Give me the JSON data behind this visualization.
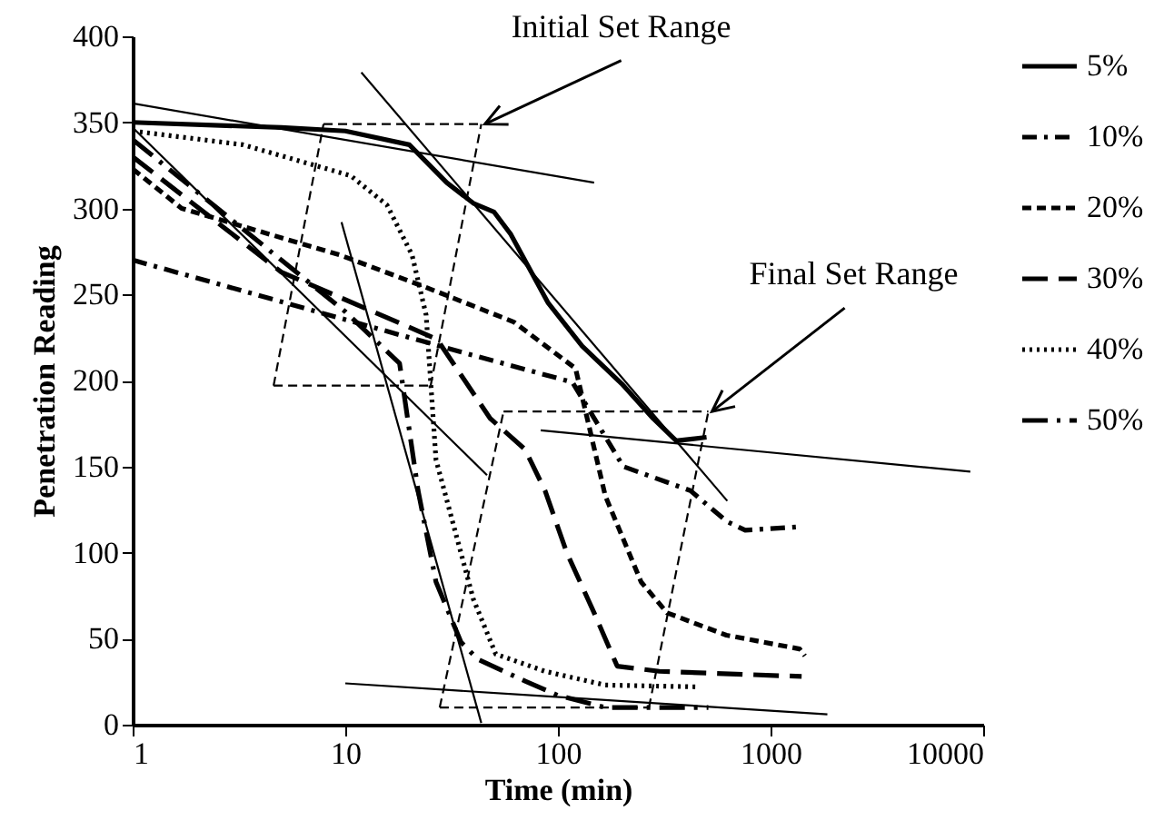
{
  "chart_data": {
    "type": "line",
    "xlabel": "Time (min)",
    "ylabel": "Penetration Reading",
    "log": "x",
    "xlim": [
      1,
      10000
    ],
    "xticks": [
      1,
      10,
      100,
      1000,
      10000
    ],
    "ylim": [
      0,
      400
    ],
    "yticks": [
      0,
      50,
      100,
      150,
      200,
      250,
      300,
      350,
      400
    ],
    "grid": false,
    "legend": "right",
    "marker": "none",
    "annotations": [
      {
        "text": "Initial Set Range",
        "x": 43.6,
        "y": 349
      },
      {
        "text": "Final Set Range",
        "x": 510,
        "y": 182
      }
    ],
    "series": [
      {
        "name": "5%",
        "color": "#000000",
        "line_style": "solid",
        "x": [
          1,
          5,
          10,
          20,
          30,
          40,
          50,
          60,
          90,
          130,
          200,
          280,
          360,
          500
        ],
        "values": [
          350,
          347,
          345,
          337,
          315,
          303,
          298,
          285,
          245,
          220,
          198,
          178,
          165,
          167
        ]
      },
      {
        "name": "10%",
        "color": "#000000",
        "line_style": "dashdot",
        "x": [
          1,
          34,
          117,
          203,
          420,
          624,
          760,
          1370
        ],
        "values": [
          270,
          217,
          199,
          150,
          136,
          118,
          113,
          115
        ]
      },
      {
        "name": "20%",
        "color": "#000000",
        "line_style": "dashed",
        "x": [
          1,
          1.7,
          9.4,
          23,
          62,
          121,
          167,
          246,
          326,
          620,
          1370,
          1450
        ],
        "values": [
          323,
          300,
          273,
          255,
          234,
          207,
          133,
          83,
          65,
          52,
          44,
          40
        ]
      },
      {
        "name": "30%",
        "color": "#000000",
        "line_style": "longdash",
        "x": [
          1,
          5,
          27,
          48,
          70,
          87,
          110,
          148,
          190,
          300,
          1400
        ],
        "values": [
          330,
          263,
          224,
          178,
          160,
          136,
          100,
          65,
          34,
          31,
          28
        ]
      },
      {
        "name": "40%",
        "color": "#000000",
        "line_style": "dotted",
        "x": [
          1,
          3.3,
          10.6,
          15.7,
          20.6,
          24,
          26.7,
          40,
          51,
          87,
          167,
          446
        ],
        "values": [
          345,
          337,
          319,
          302,
          273,
          238,
          154,
          73,
          41,
          31,
          23,
          22
        ]
      },
      {
        "name": "50%",
        "color": "#000000",
        "line_style": "longdashdot",
        "x": [
          1,
          5,
          10,
          18,
          22,
          26.7,
          35,
          42,
          71,
          100,
          167,
          510
        ],
        "values": [
          340,
          270,
          240,
          210,
          136,
          83,
          48,
          38,
          25,
          17,
          10,
          10
        ]
      },
      {
        "type": "line",
        "color": "#000000",
        "line_style": "solid",
        "x": [
          1,
          148
        ],
        "values": [
          361,
          315
        ]
      },
      {
        "type": "line",
        "color": "#000000",
        "line_style": "solid",
        "x": [
          11.9,
          626
        ],
        "values": [
          379,
          130
        ]
      },
      {
        "type": "line",
        "color": "#000000",
        "line_style": "solid",
        "x": [
          9.6,
          43.6
        ],
        "values": [
          292,
          1
        ]
      },
      {
        "type": "line",
        "color": "#000000",
        "line_style": "solid",
        "x": [
          1,
          46.4
        ],
        "values": [
          347,
          145
        ]
      },
      {
        "type": "line",
        "color": "#000000",
        "line_style": "solid",
        "x": [
          83,
          8700
        ],
        "values": [
          171,
          147
        ]
      },
      {
        "type": "line",
        "color": "#000000",
        "line_style": "solid",
        "x": [
          10,
          1850
        ],
        "values": [
          24,
          6
        ]
      },
      {
        "type": "line",
        "color": "#000000",
        "line_style": "dashed",
        "x": [
          7.9,
          43.6
        ],
        "values": [
          349,
          349
        ]
      },
      {
        "type": "line",
        "color": "#000000",
        "line_style": "dashed",
        "x": [
          25.2,
          43.6
        ],
        "values": [
          197,
          349
        ]
      },
      {
        "type": "line",
        "color": "#000000",
        "line_style": "dashed",
        "x": [
          4.6,
          25.2
        ],
        "values": [
          197,
          197
        ]
      },
      {
        "type": "line",
        "color": "#000000",
        "line_style": "dashed",
        "x": [
          4.6,
          7.9
        ],
        "values": [
          197,
          349
        ]
      },
      {
        "type": "line",
        "color": "#000000",
        "line_style": "dashed",
        "x": [
          55.5,
          510
        ],
        "values": [
          182,
          182
        ]
      },
      {
        "type": "line",
        "color": "#000000",
        "line_style": "dashed",
        "x": [
          268,
          510
        ],
        "values": [
          10,
          182
        ]
      },
      {
        "type": "line",
        "color": "#000000",
        "line_style": "dashed",
        "x": [
          27.8,
          268
        ],
        "values": [
          10,
          10
        ]
      },
      {
        "type": "line",
        "color": "#000000",
        "line_style": "dashed",
        "x": [
          27.8,
          55.5
        ],
        "values": [
          10,
          182
        ]
      }
    ]
  }
}
